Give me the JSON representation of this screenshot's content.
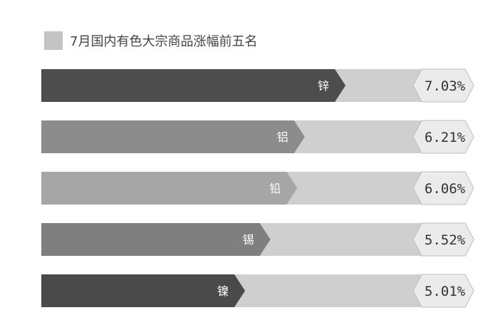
{
  "chart_data": {
    "type": "bar",
    "orientation": "horizontal",
    "legend": {
      "label": "7月国内有色大宗商品涨幅前五名",
      "swatch_color": "#c4c4c4",
      "placement": "top-left"
    },
    "categories": [
      "锌",
      "铝",
      "铅",
      "锡",
      "镍"
    ],
    "values": [
      7.03,
      6.21,
      6.06,
      5.52,
      5.01
    ],
    "value_labels": [
      "7.03%",
      "6.21%",
      "6.06%",
      "5.52%",
      "5.01%"
    ],
    "bar_colors": [
      "#4d4d4d",
      "#8c8c8c",
      "#a6a6a6",
      "#7f7f7f",
      "#4a4a4a"
    ],
    "track_color": "#cfcfcf",
    "value_box_color": "#ebebeb",
    "ylim": [
      0,
      7.03
    ]
  }
}
